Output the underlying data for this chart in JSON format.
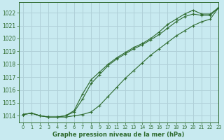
{
  "title": "Graphe pression niveau de la mer (hPa)",
  "bg_color": "#c8eaf0",
  "grid_color": "#b0d0d8",
  "line_color": "#2d6a2d",
  "marker_color": "#2d6a2d",
  "xlim": [
    -0.5,
    23
  ],
  "ylim": [
    1013.5,
    1022.8
  ],
  "xticks": [
    0,
    1,
    2,
    3,
    4,
    5,
    6,
    7,
    8,
    9,
    10,
    11,
    12,
    13,
    14,
    15,
    16,
    17,
    18,
    19,
    20,
    21,
    22,
    23
  ],
  "yticks": [
    1014,
    1015,
    1016,
    1017,
    1018,
    1019,
    1020,
    1021,
    1022
  ],
  "series1_x": [
    0,
    1,
    2,
    3,
    4,
    5,
    6,
    7,
    8,
    9,
    10,
    11,
    12,
    13,
    14,
    15,
    16,
    17,
    18,
    19,
    20,
    21,
    22,
    23
  ],
  "series1_y": [
    1014.1,
    1014.2,
    1014.0,
    1013.9,
    1013.9,
    1013.9,
    1014.0,
    1014.1,
    1014.3,
    1014.8,
    1015.5,
    1016.2,
    1016.9,
    1017.5,
    1018.1,
    1018.7,
    1019.2,
    1019.7,
    1020.2,
    1020.6,
    1021.0,
    1021.3,
    1021.5,
    1022.4
  ],
  "series2_x": [
    0,
    1,
    2,
    3,
    4,
    5,
    6,
    7,
    8,
    9,
    10,
    11,
    12,
    13,
    14,
    15,
    16,
    17,
    18,
    19,
    20,
    21,
    22,
    23
  ],
  "series2_y": [
    1014.1,
    1014.2,
    1014.0,
    1013.9,
    1013.9,
    1014.0,
    1014.3,
    1015.3,
    1016.5,
    1017.2,
    1017.9,
    1018.4,
    1018.8,
    1019.2,
    1019.5,
    1019.9,
    1020.3,
    1020.8,
    1021.3,
    1021.7,
    1021.9,
    1021.8,
    1021.8,
    1022.4
  ],
  "series3_x": [
    0,
    1,
    2,
    3,
    4,
    5,
    6,
    7,
    8,
    9,
    10,
    11,
    12,
    13,
    14,
    15,
    16,
    17,
    18,
    19,
    20,
    21,
    22,
    23
  ],
  "series3_y": [
    1014.1,
    1014.2,
    1014.0,
    1013.9,
    1013.9,
    1014.0,
    1014.4,
    1015.7,
    1016.8,
    1017.4,
    1018.0,
    1018.5,
    1018.9,
    1019.3,
    1019.6,
    1020.0,
    1020.5,
    1021.1,
    1021.5,
    1021.9,
    1022.2,
    1021.9,
    1021.9,
    1022.4
  ]
}
